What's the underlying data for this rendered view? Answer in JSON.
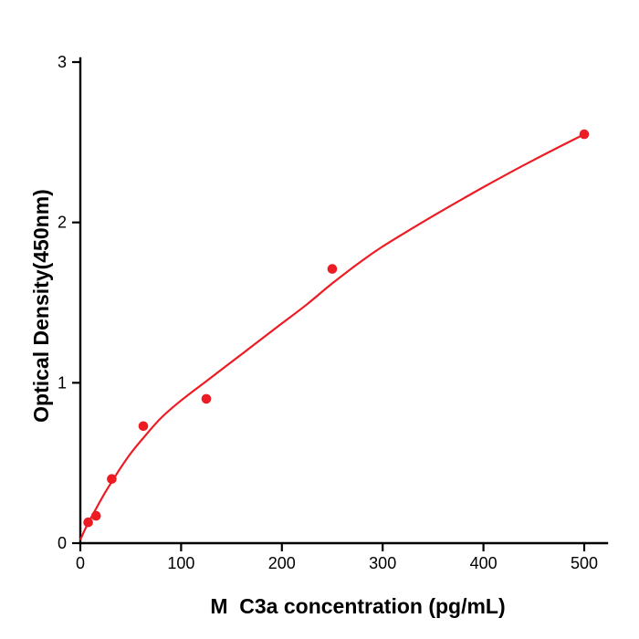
{
  "figure": {
    "background": "#ffffff"
  },
  "chart_data": {
    "type": "scatter",
    "xlabel": "M  C3a concentration (pg/mL)",
    "ylabel": "Optical Density(450nm)",
    "xlim": [
      0,
      500
    ],
    "ylim": [
      0,
      3
    ],
    "xticks": [
      0,
      100,
      200,
      300,
      400,
      500
    ],
    "yticks": [
      0,
      1,
      2,
      3
    ],
    "grid": false,
    "legend": false,
    "accent_color": "#ed1c24",
    "axis_color": "#000000",
    "points": [
      {
        "x": 7.8,
        "y": 0.13
      },
      {
        "x": 15.6,
        "y": 0.17
      },
      {
        "x": 31.2,
        "y": 0.4
      },
      {
        "x": 62.5,
        "y": 0.73
      },
      {
        "x": 125,
        "y": 0.9
      },
      {
        "x": 250,
        "y": 1.71
      },
      {
        "x": 500,
        "y": 2.55
      }
    ],
    "fit_curve": [
      [
        0,
        0.02
      ],
      [
        5,
        0.09
      ],
      [
        10,
        0.15
      ],
      [
        16,
        0.22
      ],
      [
        25,
        0.32
      ],
      [
        31,
        0.38
      ],
      [
        40,
        0.47
      ],
      [
        50,
        0.56
      ],
      [
        63,
        0.66
      ],
      [
        80,
        0.78
      ],
      [
        100,
        0.89
      ],
      [
        125,
        1.01
      ],
      [
        150,
        1.13
      ],
      [
        175,
        1.25
      ],
      [
        200,
        1.37
      ],
      [
        225,
        1.49
      ],
      [
        250,
        1.62
      ],
      [
        275,
        1.74
      ],
      [
        300,
        1.85
      ],
      [
        350,
        2.04
      ],
      [
        400,
        2.22
      ],
      [
        450,
        2.39
      ],
      [
        500,
        2.55
      ]
    ]
  }
}
